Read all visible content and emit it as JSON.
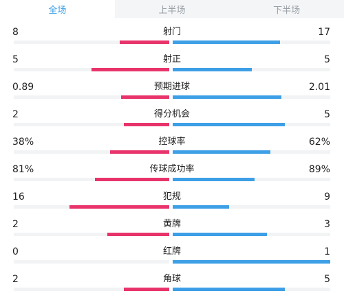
{
  "tabs": [
    {
      "label": "全场",
      "active": true
    },
    {
      "label": "上半场",
      "active": false
    },
    {
      "label": "下半场",
      "active": false
    }
  ],
  "colors": {
    "home": "#e8336b",
    "away": "#3d9fe6",
    "active_tab": "#3a9ee8",
    "track": "#f2f3f5"
  },
  "stats": [
    {
      "label": "射门",
      "home": "8",
      "away": "17",
      "home_share": 0.32,
      "away_share": 0.68
    },
    {
      "label": "射正",
      "home": "5",
      "away": "5",
      "home_share": 0.5,
      "away_share": 0.5
    },
    {
      "label": "预期进球",
      "home": "0.89",
      "away": "2.01",
      "home_share": 0.31,
      "away_share": 0.69
    },
    {
      "label": "得分机会",
      "home": "2",
      "away": "5",
      "home_share": 0.29,
      "away_share": 0.71
    },
    {
      "label": "控球率",
      "home": "38%",
      "away": "62%",
      "home_share": 0.38,
      "away_share": 0.62
    },
    {
      "label": "传球成功率",
      "home": "81%",
      "away": "89%",
      "home_share": 0.48,
      "away_share": 0.52
    },
    {
      "label": "犯规",
      "home": "16",
      "away": "9",
      "home_share": 0.64,
      "away_share": 0.36
    },
    {
      "label": "黄牌",
      "home": "2",
      "away": "3",
      "home_share": 0.4,
      "away_share": 0.6
    },
    {
      "label": "红牌",
      "home": "0",
      "away": "1",
      "home_share": 0.0,
      "away_share": 1.0
    },
    {
      "label": "角球",
      "home": "2",
      "away": "5",
      "home_share": 0.29,
      "away_share": 0.71
    }
  ]
}
